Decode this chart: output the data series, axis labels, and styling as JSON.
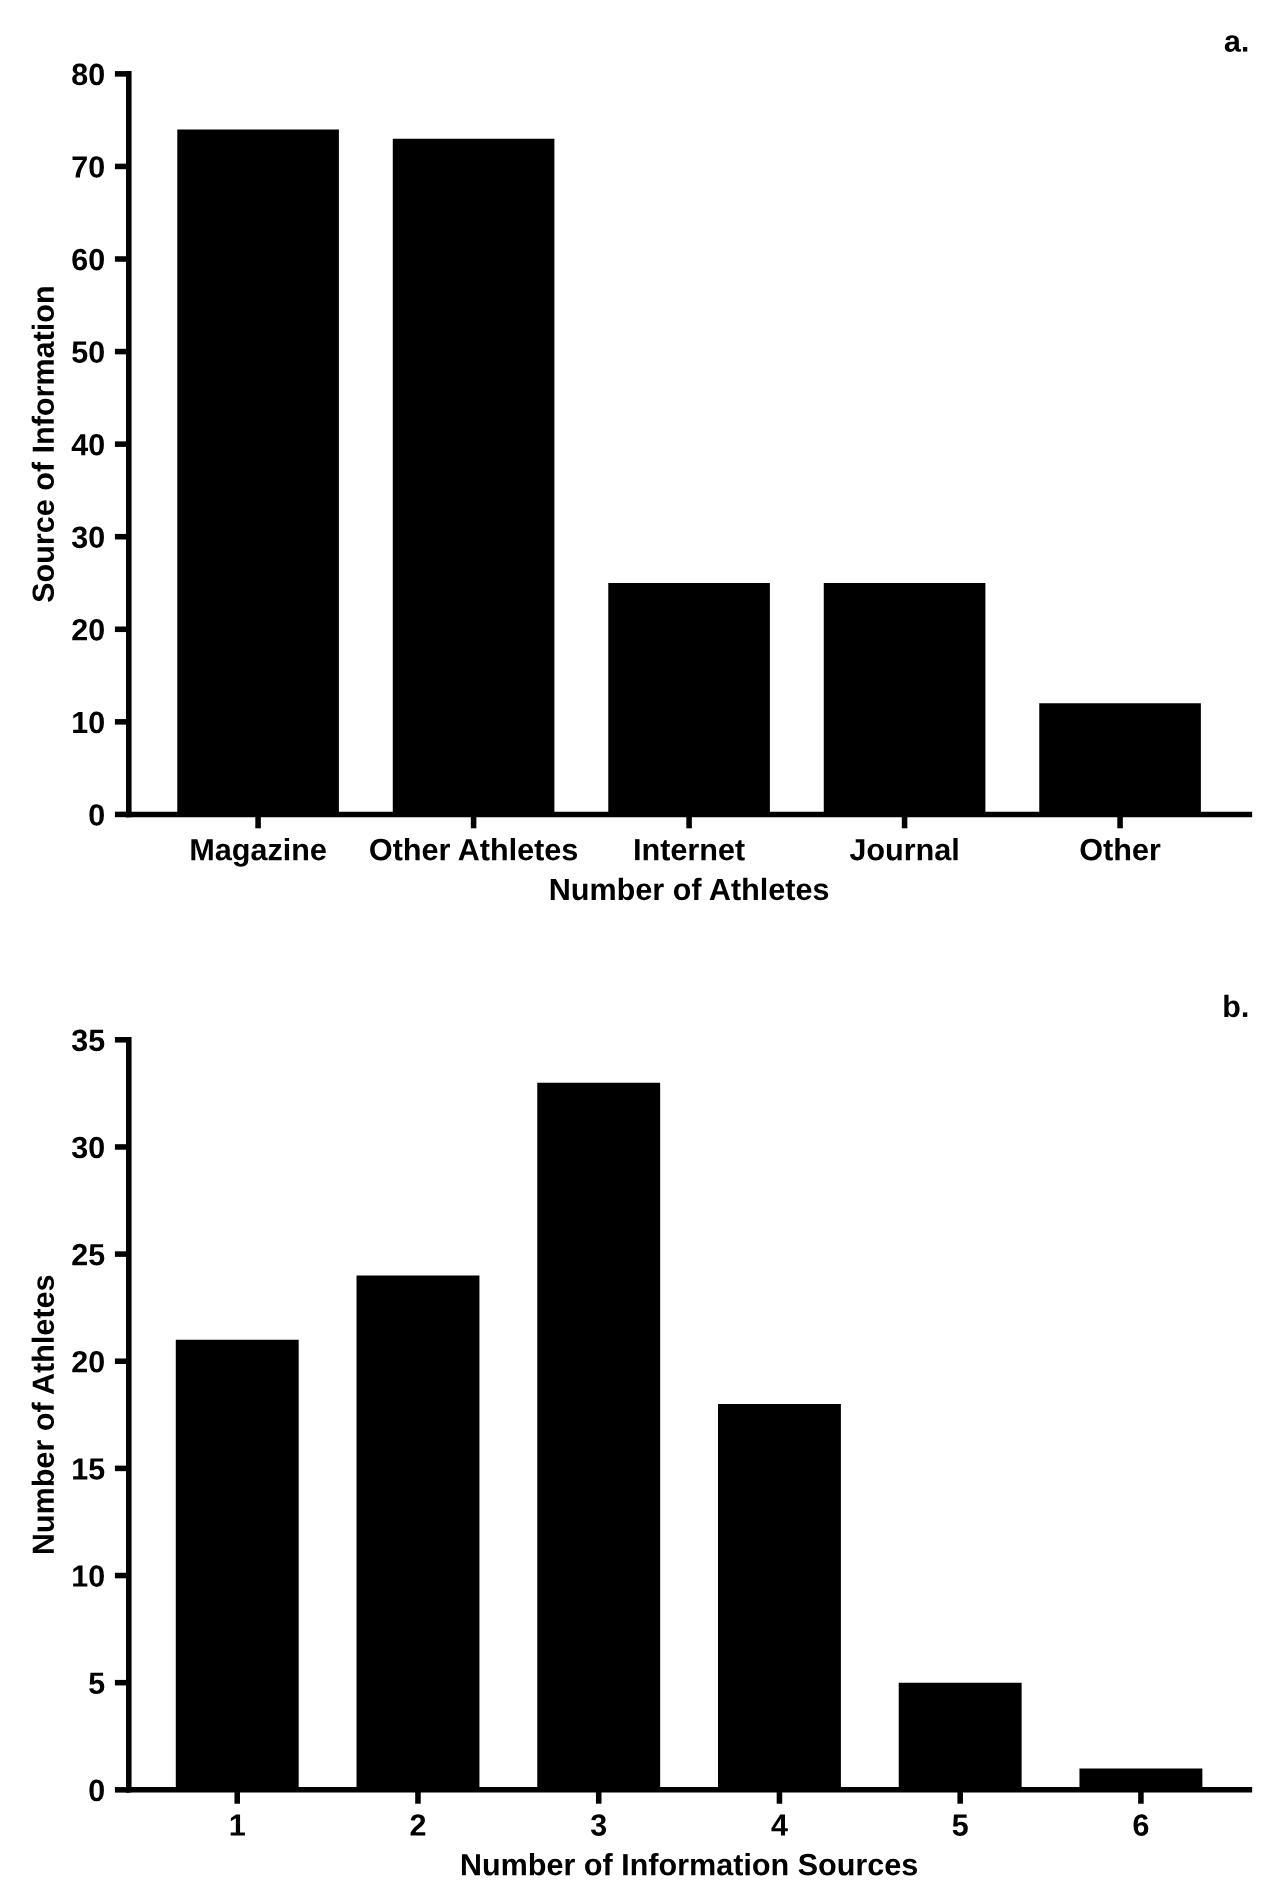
{
  "chart_data": [
    {
      "type": "bar",
      "categories": [
        "Magazine",
        "Other Athletes",
        "Internet",
        "Journal",
        "Other"
      ],
      "values": [
        74,
        73,
        25,
        25,
        12
      ],
      "color": "#000000",
      "xlabel": "Number of Athletes",
      "ylabel": "Source of Information",
      "ylim": [
        0,
        80
      ],
      "yticks": [
        0,
        10,
        20,
        30,
        40,
        50,
        60,
        70,
        80
      ],
      "grid": false,
      "legend": false,
      "annotations": [
        "a."
      ]
    },
    {
      "type": "bar",
      "categories": [
        "1",
        "2",
        "3",
        "4",
        "5",
        "6"
      ],
      "values": [
        21,
        24,
        33,
        18,
        5,
        1
      ],
      "color": "#000000",
      "xlabel": "Number of Information Sources",
      "ylabel": "Number of Athletes",
      "ylim": [
        0,
        35
      ],
      "yticks": [
        0,
        5,
        10,
        15,
        20,
        25,
        30,
        35
      ],
      "grid": false,
      "legend": false,
      "annotations": [
        "b."
      ]
    }
  ]
}
